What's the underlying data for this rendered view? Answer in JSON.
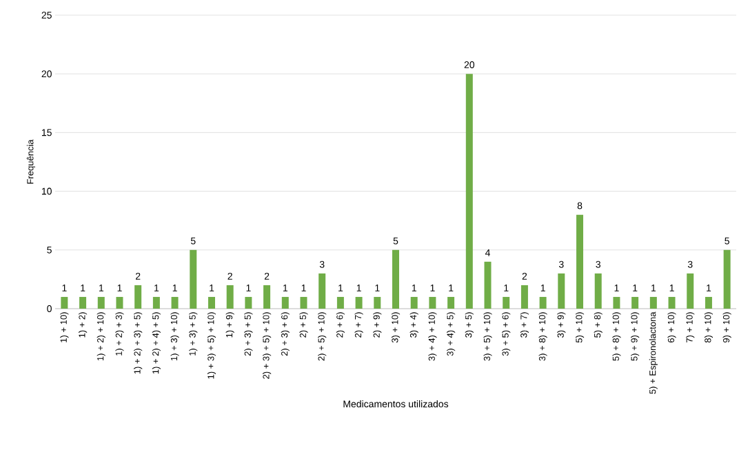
{
  "chart_data": {
    "type": "bar",
    "xlabel": "Medicamentos utilizados",
    "ylabel": "Frequência",
    "categories": [
      "1) + 10)",
      "1) + 2)",
      "1) + 2) + 10)",
      "1) + 2) + 3)",
      "1) + 2) + 3) + 5)",
      "1) + 2) + 4) + 5)",
      "1) + 3) + 10)",
      "1) + 3) + 5)",
      "1) + 3) + 5) + 10)",
      "1) + 9)",
      "2) + 3) + 5)",
      "2) + 3) + 5) + 10)",
      "2) + 3) + 6)",
      "2) + 5)",
      "2) + 5) + 10)",
      "2) + 6)",
      "2) + 7)",
      "2) + 9)",
      "3) + 10)",
      "3) + 4)",
      "3) + 4) + 10)",
      "3) + 4) + 5)",
      "3) + 5)",
      "3) + 5) + 10)",
      "3) + 5) + 6)",
      "3) + 7)",
      "3) + 8) + 10)",
      "3) + 9)",
      "5) + 10)",
      "5) + 8)",
      "5) + 8) + 10)",
      "5) + 9) + 10)",
      "5) + Espironolactona",
      "6) + 10)",
      "7) + 10)",
      "8) + 10)",
      "9) + 10)"
    ],
    "values": [
      1,
      1,
      1,
      1,
      2,
      1,
      1,
      5,
      1,
      2,
      1,
      2,
      1,
      1,
      3,
      1,
      1,
      1,
      5,
      1,
      1,
      1,
      20,
      4,
      1,
      2,
      1,
      3,
      8,
      3,
      1,
      1,
      1,
      1,
      3,
      1,
      5
    ],
    "color": "#70ad47",
    "ylim": [
      0,
      25
    ],
    "yticks": [
      0,
      5,
      10,
      15,
      20,
      25
    ],
    "grid": "y",
    "data_labels": true
  }
}
